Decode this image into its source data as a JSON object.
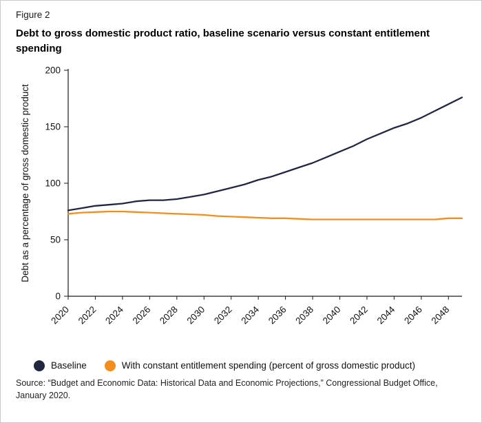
{
  "figure_label": "Figure 2",
  "title": "Debt to gross domestic product ratio, baseline scenario versus constant entitlement spending",
  "source_line1": "Source: “Budget and Economic Data: Historical Data and Economic Projections,” Congressional Budget Office,",
  "source_line2": "January 2020.",
  "colors": {
    "baseline": "#212641",
    "constant": "#f28e1e",
    "axis": "#1a1a1a",
    "text": "#111111"
  },
  "legend": [
    {
      "label": "Baseline",
      "color": "#212641"
    },
    {
      "label": "With constant entitlement spending (percent of gross domestic product)",
      "color": "#f28e1e"
    }
  ],
  "chart_data": {
    "type": "line",
    "title": "Debt to gross domestic product ratio, baseline scenario versus constant entitlement spending",
    "xlabel": "",
    "ylabel": "Debt as a percentage of gross domestic product",
    "ylim": [
      0,
      200
    ],
    "yticks": [
      0,
      50,
      100,
      150,
      200
    ],
    "x": [
      2020,
      2021,
      2022,
      2023,
      2024,
      2025,
      2026,
      2027,
      2028,
      2029,
      2030,
      2031,
      2032,
      2033,
      2034,
      2035,
      2036,
      2037,
      2038,
      2039,
      2040,
      2041,
      2042,
      2043,
      2044,
      2045,
      2046,
      2047,
      2048,
      2049
    ],
    "xticks": [
      2020,
      2022,
      2024,
      2026,
      2028,
      2030,
      2032,
      2034,
      2036,
      2038,
      2040,
      2042,
      2044,
      2046,
      2048
    ],
    "grid": false,
    "legend_position": "bottom",
    "series": [
      {
        "name": "Baseline",
        "color": "#212641",
        "values": [
          76,
          78,
          80,
          81,
          82,
          84,
          85,
          85,
          86,
          88,
          90,
          93,
          96,
          99,
          103,
          106,
          110,
          114,
          118,
          123,
          128,
          133,
          139,
          144,
          149,
          153,
          158,
          164,
          170,
          176
        ]
      },
      {
        "name": "With constant entitlement spending (percent of gross domestic product)",
        "color": "#f28e1e",
        "values": [
          73,
          74,
          74.5,
          75,
          75,
          74.5,
          74,
          73.5,
          73,
          72.5,
          72,
          71,
          70.5,
          70,
          69.5,
          69,
          69,
          68.5,
          68,
          68,
          68,
          68,
          68,
          68,
          68,
          68,
          68,
          68,
          69,
          69
        ]
      }
    ]
  }
}
